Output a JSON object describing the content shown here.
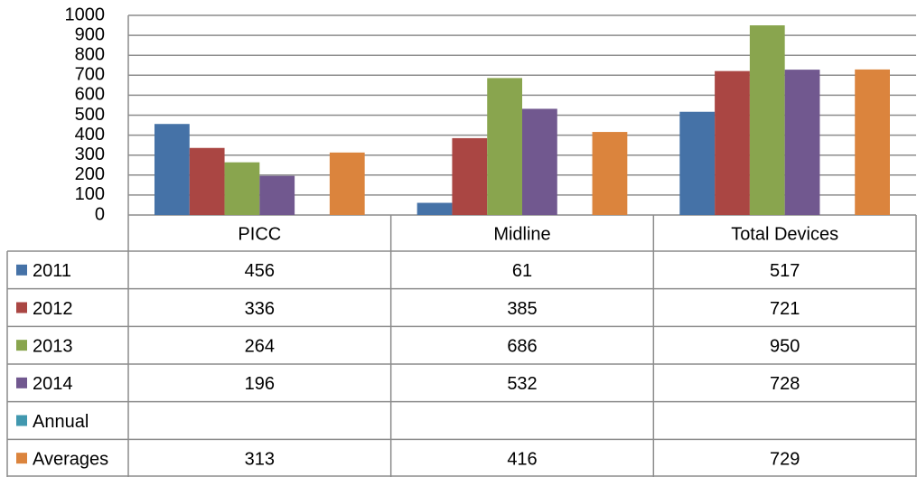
{
  "chart_data": {
    "type": "bar",
    "categories": [
      "PICC",
      "Midline",
      "Total Devices"
    ],
    "series": [
      {
        "name": "2011",
        "color": "#4572a7",
        "values": [
          456,
          61,
          517
        ]
      },
      {
        "name": "2012",
        "color": "#aa4643",
        "values": [
          336,
          385,
          721
        ]
      },
      {
        "name": "2013",
        "color": "#89a54e",
        "values": [
          264,
          686,
          950
        ]
      },
      {
        "name": "2014",
        "color": "#71588f",
        "values": [
          196,
          532,
          728
        ]
      },
      {
        "name": "Annual",
        "color": "#4198af",
        "values": [
          null,
          null,
          null
        ]
      },
      {
        "name": "Averages",
        "color": "#db843d",
        "values": [
          313,
          416,
          729
        ]
      }
    ],
    "ylim": [
      0,
      1000
    ],
    "yticks": [
      0,
      100,
      200,
      300,
      400,
      500,
      600,
      700,
      800,
      900,
      1000
    ],
    "grid": true,
    "data_table": true
  }
}
